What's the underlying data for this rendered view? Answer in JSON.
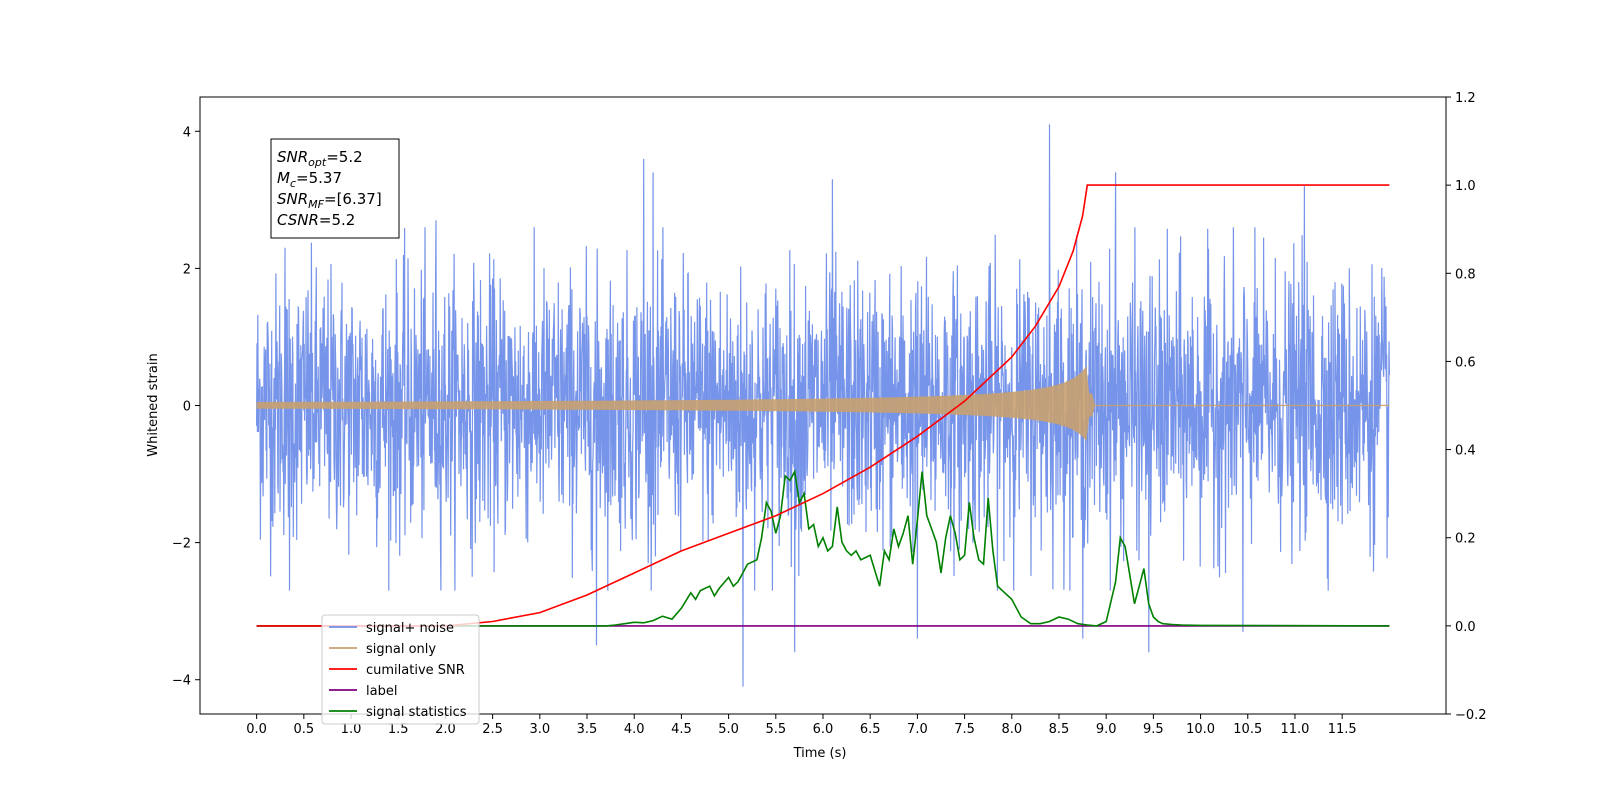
{
  "chart_data": {
    "type": "line",
    "xlabel": "Time (s)",
    "ylabel": "Whitened strain",
    "xlim": [
      -0.6,
      12.6
    ],
    "ylim": [
      -4.5,
      4.5
    ],
    "y2lim": [
      -0.2,
      1.2
    ],
    "x_ticks": [
      "0.0",
      "0.5",
      "1.0",
      "1.5",
      "2.0",
      "2.5",
      "3.0",
      "3.5",
      "4.0",
      "4.5",
      "5.0",
      "5.5",
      "6.0",
      "6.5",
      "7.0",
      "7.5",
      "8.0",
      "8.5",
      "9.0",
      "9.5",
      "10.0",
      "10.5",
      "11.0",
      "11.5"
    ],
    "y_ticks": [
      "4",
      "2",
      "0",
      "−2",
      "−4"
    ],
    "y2_ticks": [
      "1.2",
      "1.0",
      "0.8",
      "0.6",
      "0.4",
      "0.2",
      "0.0",
      "−0.2"
    ],
    "info_box": [
      {
        "sym": "SNR",
        "sub": "opt",
        "text": "=5.2"
      },
      {
        "sym": "M",
        "sub": "c",
        "text": "=5.37"
      },
      {
        "sym": "SNR",
        "sub": "MF",
        "text": "=[6.37]"
      },
      {
        "sym": "CSNR",
        "sub": "",
        "text": "=5.2"
      }
    ],
    "legend_position": "lower-left",
    "series": [
      {
        "name": "signal+ noise",
        "axis": "left",
        "color": "#6f8ee8",
        "x_range": [
          0,
          12
        ],
        "noise_std": 0.95,
        "peaks_up": [
          [
            0.3,
            2.3
          ],
          [
            1.9,
            2.7
          ],
          [
            4.1,
            3.6
          ],
          [
            4.2,
            3.4
          ],
          [
            6.1,
            3.3
          ],
          [
            8.4,
            4.1
          ],
          [
            9.1,
            3.4
          ],
          [
            11.1,
            3.2
          ]
        ],
        "peaks_down": [
          [
            0.35,
            -2.7
          ],
          [
            3.6,
            -3.5
          ],
          [
            5.15,
            -4.1
          ],
          [
            5.7,
            -3.6
          ],
          [
            7.0,
            -3.4
          ],
          [
            8.75,
            -3.4
          ],
          [
            9.45,
            -3.6
          ],
          [
            10.45,
            -3.3
          ]
        ]
      },
      {
        "name": "signal only",
        "axis": "left",
        "color": "#c8a070",
        "x_range": [
          0,
          12
        ],
        "merger_time": 8.8,
        "peak_amplitude": 0.6
      },
      {
        "name": "cumilative SNR",
        "axis": "right",
        "color": "#ff0000",
        "x": [
          0.0,
          2.0,
          2.5,
          3.0,
          3.5,
          4.0,
          4.5,
          5.0,
          5.5,
          6.0,
          6.5,
          7.0,
          7.5,
          8.0,
          8.25,
          8.5,
          8.65,
          8.75,
          8.8,
          12.0
        ],
        "y": [
          0.0,
          0.0,
          0.01,
          0.03,
          0.07,
          0.12,
          0.17,
          0.21,
          0.25,
          0.3,
          0.36,
          0.43,
          0.51,
          0.61,
          0.68,
          0.77,
          0.85,
          0.93,
          1.0,
          1.0
        ]
      },
      {
        "name": "label",
        "axis": "right",
        "color": "#800080",
        "x": [
          0.0,
          12.0
        ],
        "y": [
          0.0,
          0.0
        ]
      },
      {
        "name": "signal statistics",
        "axis": "right",
        "color": "#008000",
        "x": [
          0.0,
          3.7,
          3.8,
          3.9,
          4.0,
          4.1,
          4.2,
          4.3,
          4.4,
          4.5,
          4.6,
          4.65,
          4.7,
          4.8,
          4.85,
          4.9,
          5.0,
          5.05,
          5.1,
          5.15,
          5.2,
          5.3,
          5.35,
          5.4,
          5.45,
          5.5,
          5.55,
          5.6,
          5.65,
          5.7,
          5.75,
          5.8,
          5.85,
          5.9,
          5.95,
          6.0,
          6.05,
          6.1,
          6.15,
          6.2,
          6.25,
          6.3,
          6.35,
          6.4,
          6.5,
          6.6,
          6.65,
          6.7,
          6.75,
          6.8,
          6.85,
          6.9,
          6.95,
          7.0,
          7.05,
          7.1,
          7.15,
          7.2,
          7.25,
          7.3,
          7.35,
          7.4,
          7.45,
          7.5,
          7.55,
          7.6,
          7.65,
          7.7,
          7.75,
          7.8,
          7.85,
          7.9,
          8.0,
          8.1,
          8.2,
          8.3,
          8.4,
          8.5,
          8.6,
          8.7,
          8.8,
          8.9,
          9.0,
          9.1,
          9.15,
          9.2,
          9.3,
          9.4,
          9.45,
          9.5,
          9.55,
          9.6,
          9.7,
          9.8,
          10.0,
          12.0
        ],
        "y": [
          0.0,
          0.0,
          0.002,
          0.005,
          0.008,
          0.007,
          0.012,
          0.022,
          0.015,
          0.04,
          0.075,
          0.06,
          0.08,
          0.09,
          0.068,
          0.085,
          0.11,
          0.09,
          0.1,
          0.12,
          0.14,
          0.15,
          0.2,
          0.28,
          0.26,
          0.21,
          0.25,
          0.34,
          0.33,
          0.35,
          0.28,
          0.3,
          0.22,
          0.23,
          0.18,
          0.2,
          0.17,
          0.18,
          0.27,
          0.19,
          0.17,
          0.16,
          0.17,
          0.15,
          0.16,
          0.09,
          0.17,
          0.15,
          0.22,
          0.18,
          0.21,
          0.25,
          0.14,
          0.24,
          0.35,
          0.25,
          0.22,
          0.19,
          0.12,
          0.2,
          0.25,
          0.21,
          0.15,
          0.16,
          0.28,
          0.2,
          0.15,
          0.14,
          0.29,
          0.17,
          0.09,
          0.08,
          0.06,
          0.02,
          0.005,
          0.005,
          0.01,
          0.02,
          0.015,
          0.005,
          0.002,
          0.0,
          0.01,
          0.1,
          0.2,
          0.18,
          0.05,
          0.13,
          0.05,
          0.02,
          0.01,
          0.005,
          0.003,
          0.002,
          0.001,
          0.0
        ]
      }
    ]
  }
}
